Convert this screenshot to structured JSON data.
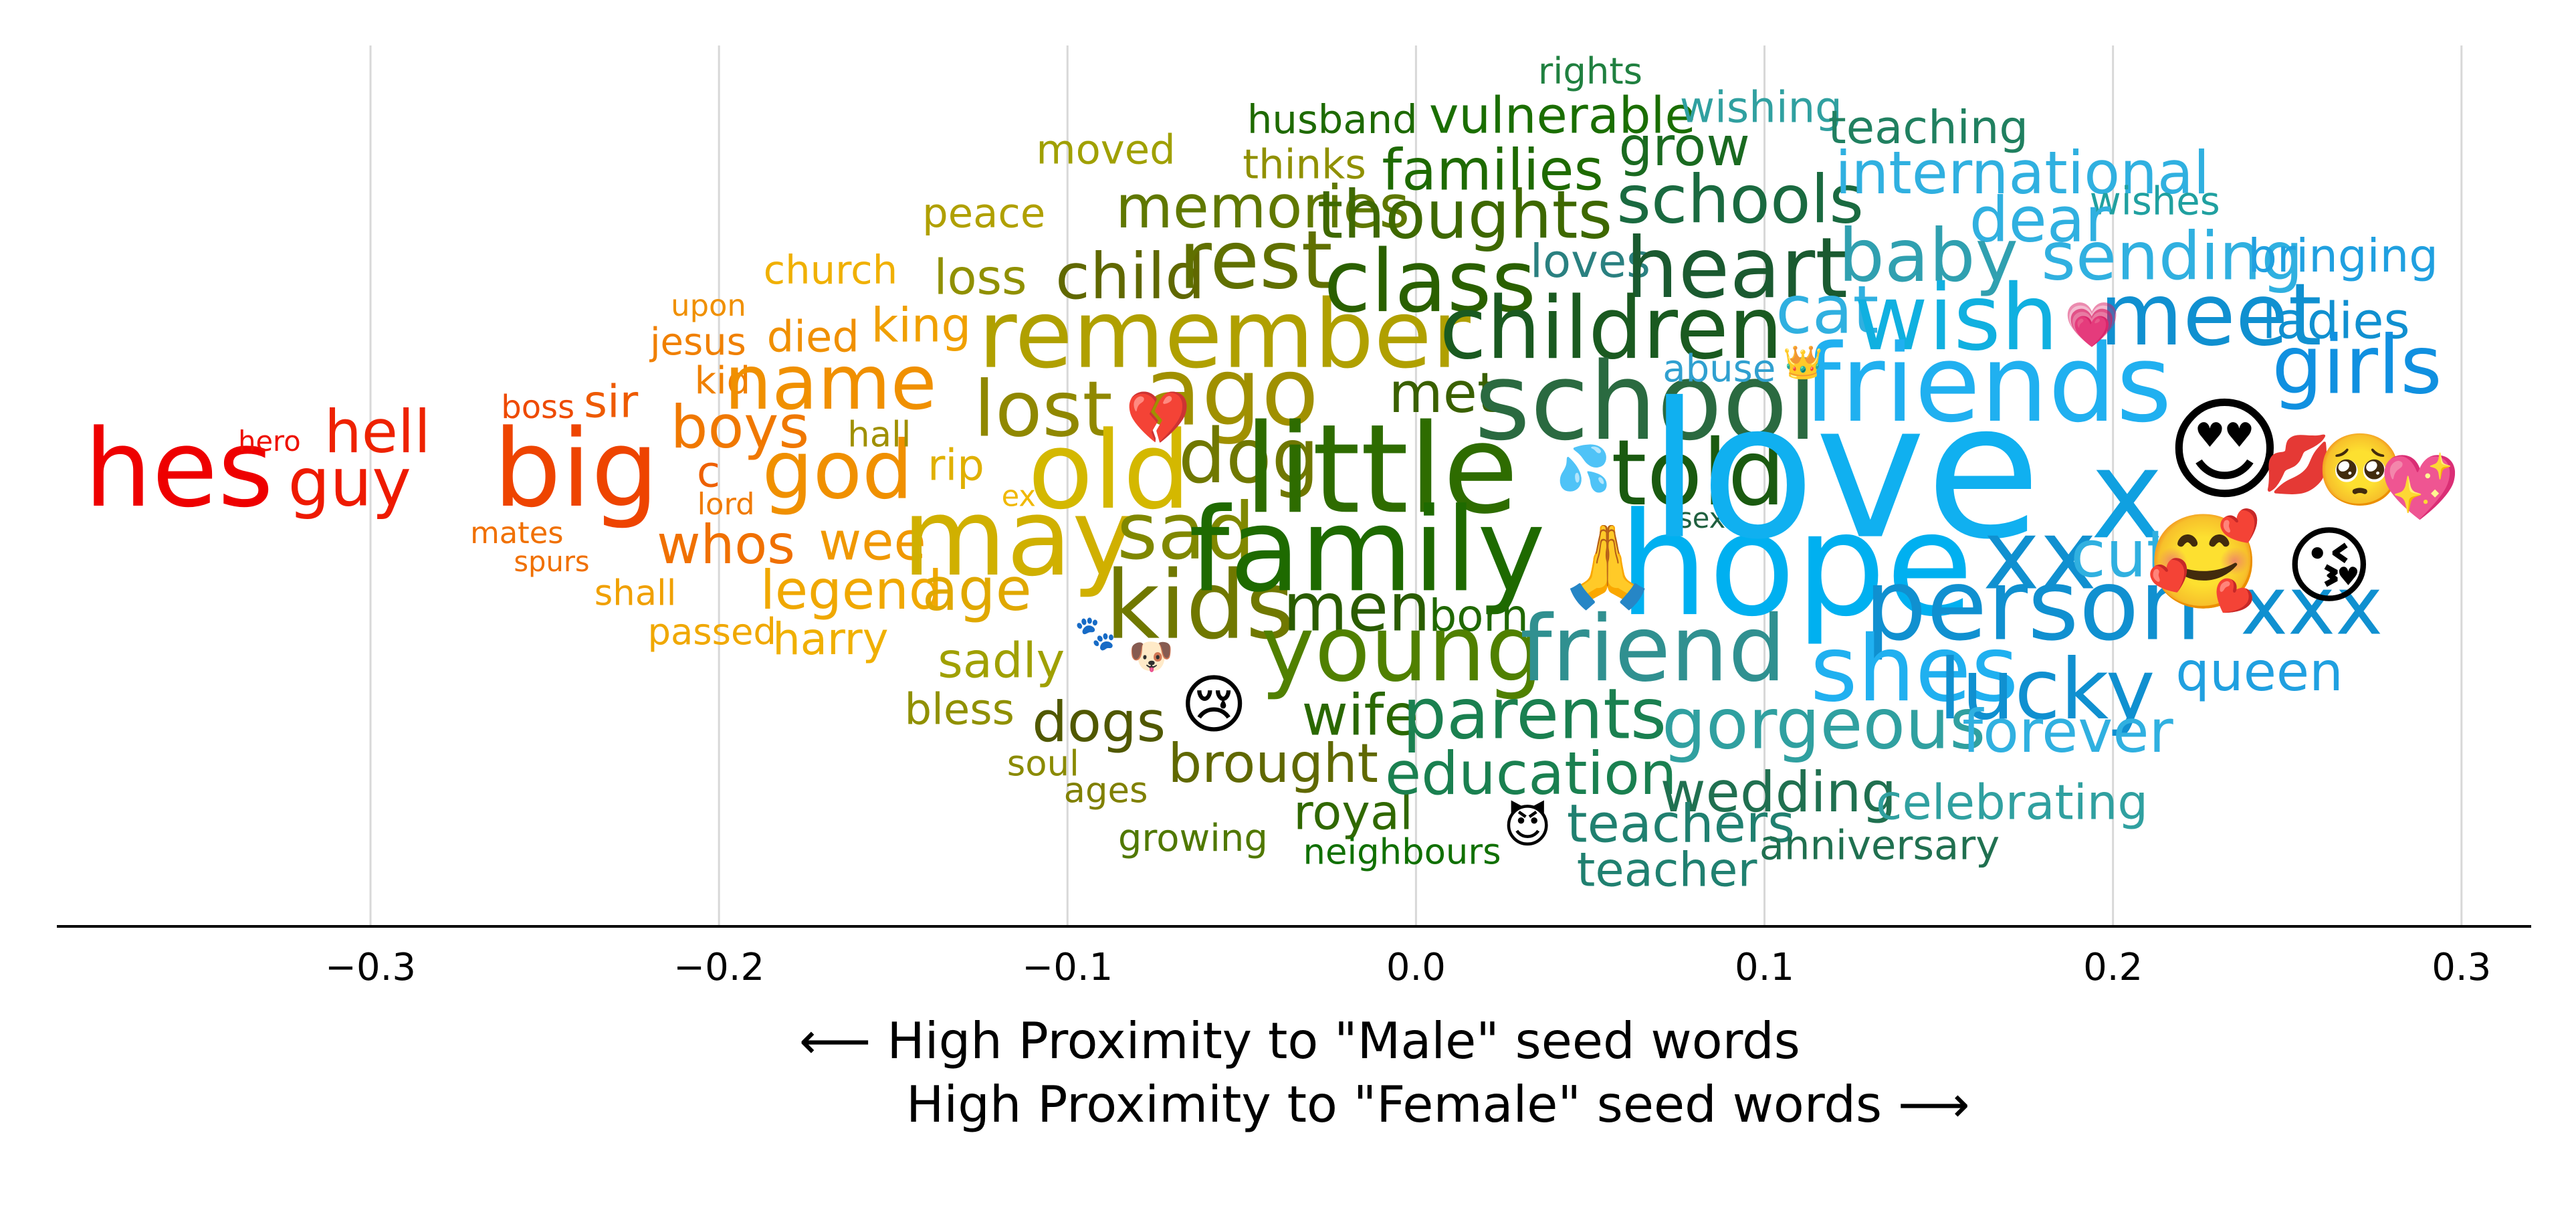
{
  "chart_data": {
    "type": "scatter",
    "subtype": "word-cloud",
    "xlim": [
      -0.39,
      0.32
    ],
    "x_ticks": [
      -0.3,
      -0.2,
      -0.1,
      0.0,
      0.1,
      0.2,
      0.3
    ],
    "x_tick_labels": [
      "−0.3",
      "−0.2",
      "−0.1",
      "0.0",
      "0.1",
      "0.2",
      "0.3"
    ],
    "grid": "vertical",
    "xlabel_line1": "⟵  High Proximity to \"Male\" seed words",
    "xlabel_line2": "High Proximity to \"Female\" seed words  ⟶",
    "words": [
      {
        "text": "hes",
        "x": -0.355,
        "size": 1.0,
        "color": "#ee0000"
      },
      {
        "text": "hero",
        "x": -0.329,
        "size": 0.26,
        "color": "#ee1000"
      },
      {
        "text": "guy",
        "x": -0.306,
        "size": 0.62,
        "color": "#ee1a00"
      },
      {
        "text": "hell",
        "x": -0.298,
        "size": 0.55,
        "color": "#ee2200"
      },
      {
        "text": "big",
        "x": -0.241,
        "size": 1.0,
        "color": "#ee4400"
      },
      {
        "text": "boss",
        "x": -0.252,
        "size": 0.3,
        "color": "#ee4a00"
      },
      {
        "text": "sir",
        "x": -0.231,
        "size": 0.42,
        "color": "#ee5a00"
      },
      {
        "text": "mates",
        "x": -0.258,
        "size": 0.28,
        "color": "#f07000"
      },
      {
        "text": "spurs",
        "x": -0.248,
        "size": 0.26,
        "color": "#f07000"
      },
      {
        "text": "c",
        "x": -0.203,
        "size": 0.4,
        "color": "#ee6000"
      },
      {
        "text": "lord",
        "x": -0.198,
        "size": 0.28,
        "color": "#f07a00"
      },
      {
        "text": "upon",
        "x": -0.203,
        "size": 0.28,
        "color": "#f09000"
      },
      {
        "text": "jesus",
        "x": -0.206,
        "size": 0.35,
        "color": "#f08000"
      },
      {
        "text": "kid",
        "x": -0.199,
        "size": 0.35,
        "color": "#f08000"
      },
      {
        "text": "boys",
        "x": -0.194,
        "size": 0.55,
        "color": "#f07800"
      },
      {
        "text": "whos",
        "x": -0.198,
        "size": 0.5,
        "color": "#f07000"
      },
      {
        "text": "shall",
        "x": -0.224,
        "size": 0.33,
        "color": "#f0a000"
      },
      {
        "text": "passed",
        "x": -0.202,
        "size": 0.34,
        "color": "#f0a800"
      },
      {
        "text": "church",
        "x": -0.168,
        "size": 0.37,
        "color": "#f0b000"
      },
      {
        "text": "died",
        "x": -0.173,
        "size": 0.4,
        "color": "#f09000"
      },
      {
        "text": "king",
        "x": -0.142,
        "size": 0.44,
        "color": "#f0a000"
      },
      {
        "text": "name",
        "x": -0.168,
        "size": 0.7,
        "color": "#f09000"
      },
      {
        "text": "god",
        "x": -0.166,
        "size": 0.75,
        "color": "#f09000"
      },
      {
        "text": "hall",
        "x": -0.154,
        "size": 0.33,
        "color": "#a09000"
      },
      {
        "text": "rip",
        "x": -0.132,
        "size": 0.4,
        "color": "#e0b000"
      },
      {
        "text": "ex",
        "x": -0.114,
        "size": 0.27,
        "color": "#f0b800"
      },
      {
        "text": "wee",
        "x": -0.156,
        "size": 0.49,
        "color": "#f09800"
      },
      {
        "text": "legend",
        "x": -0.162,
        "size": 0.5,
        "color": "#f0a800"
      },
      {
        "text": "age",
        "x": -0.126,
        "size": 0.55,
        "color": "#e0a800"
      },
      {
        "text": "harry",
        "x": -0.168,
        "size": 0.41,
        "color": "#f0b000"
      },
      {
        "text": "peace",
        "x": -0.124,
        "size": 0.38,
        "color": "#b0a000"
      },
      {
        "text": "moved",
        "x": -0.089,
        "size": 0.38,
        "color": "#a0a000"
      },
      {
        "text": "loss",
        "x": -0.125,
        "size": 0.45,
        "color": "#909000"
      },
      {
        "text": "remember",
        "x": -0.055,
        "size": 0.88,
        "color": "#b0a000"
      },
      {
        "text": "lost",
        "x": -0.107,
        "size": 0.72,
        "color": "#908800"
      },
      {
        "text": "old",
        "x": -0.088,
        "size": 1.0,
        "color": "#d4b800"
      },
      {
        "text": "may",
        "x": -0.114,
        "size": 1.0,
        "color": "#d0b000"
      },
      {
        "text": "sadly",
        "x": -0.119,
        "size": 0.45,
        "color": "#a0a000"
      },
      {
        "text": "bless",
        "x": -0.131,
        "size": 0.4,
        "color": "#909000"
      },
      {
        "text": "soul",
        "x": -0.107,
        "size": 0.33,
        "color": "#8a8a00"
      },
      {
        "text": "ages",
        "x": -0.089,
        "size": 0.33,
        "color": "#808000"
      },
      {
        "text": "growing",
        "x": -0.064,
        "size": 0.35,
        "color": "#507800"
      },
      {
        "text": "memories",
        "x": -0.044,
        "size": 0.55,
        "color": "#607800"
      },
      {
        "text": "thinks",
        "x": -0.032,
        "size": 0.38,
        "color": "#909000"
      },
      {
        "text": "husband",
        "x": -0.024,
        "size": 0.37,
        "color": "#1e6a00"
      },
      {
        "text": "child",
        "x": -0.082,
        "size": 0.59,
        "color": "#606800"
      },
      {
        "text": "rest",
        "x": -0.046,
        "size": 0.75,
        "color": "#607000"
      },
      {
        "text": "ago",
        "x": -0.053,
        "size": 0.88,
        "color": "#a09000"
      },
      {
        "text": "dog",
        "x": -0.048,
        "size": 0.7,
        "color": "#707800"
      },
      {
        "text": "sad",
        "x": -0.066,
        "size": 0.73,
        "color": "#808800"
      },
      {
        "text": "kids",
        "x": -0.062,
        "size": 0.88,
        "color": "#707800"
      },
      {
        "text": "dogs",
        "x": -0.091,
        "size": 0.52,
        "color": "#505800"
      },
      {
        "text": "brought",
        "x": -0.041,
        "size": 0.5,
        "color": "#606800"
      },
      {
        "text": "royal",
        "x": -0.018,
        "size": 0.45,
        "color": "#306800"
      },
      {
        "text": "neighbours",
        "x": -0.004,
        "size": 0.33,
        "color": "#107000"
      },
      {
        "text": "families",
        "x": 0.022,
        "size": 0.53,
        "color": "#1e6a00"
      },
      {
        "text": "thoughts",
        "x": 0.014,
        "size": 0.62,
        "color": "#3e6800"
      },
      {
        "text": "class",
        "x": 0.004,
        "size": 0.8,
        "color": "#2a6000"
      },
      {
        "text": "met",
        "x": 0.008,
        "size": 0.52,
        "color": "#3a6000"
      },
      {
        "text": "little",
        "x": -0.01,
        "size": 1.15,
        "color": "#2e6c00"
      },
      {
        "text": "family",
        "x": -0.014,
        "size": 1.08,
        "color": "#1e6a00"
      },
      {
        "text": "men",
        "x": -0.017,
        "size": 0.62,
        "color": "#2a5c00"
      },
      {
        "text": "born",
        "x": 0.018,
        "size": 0.41,
        "color": "#206800"
      },
      {
        "text": "young",
        "x": -0.004,
        "size": 0.85,
        "color": "#508000"
      },
      {
        "text": "wife",
        "x": -0.016,
        "size": 0.53,
        "color": "#2a6800"
      },
      {
        "text": "parents",
        "x": 0.034,
        "size": 0.65,
        "color": "#1a8050"
      },
      {
        "text": "education",
        "x": 0.033,
        "size": 0.55,
        "color": "#1a8050"
      },
      {
        "text": "rights",
        "x": 0.05,
        "size": 0.34,
        "color": "#208040"
      },
      {
        "text": "vulnerable",
        "x": 0.042,
        "size": 0.47,
        "color": "#1a6e00"
      },
      {
        "text": "grow",
        "x": 0.077,
        "size": 0.5,
        "color": "#1a6a20"
      },
      {
        "text": "wishing",
        "x": 0.099,
        "size": 0.4,
        "color": "#30a0a0"
      },
      {
        "text": "teaching",
        "x": 0.147,
        "size": 0.43,
        "color": "#208060"
      },
      {
        "text": "schools",
        "x": 0.093,
        "size": 0.62,
        "color": "#1a6a40"
      },
      {
        "text": "loves",
        "x": 0.05,
        "size": 0.43,
        "color": "#2a8080"
      },
      {
        "text": "heart",
        "x": 0.092,
        "size": 0.78,
        "color": "#1a5a30"
      },
      {
        "text": "children",
        "x": 0.056,
        "size": 0.8,
        "color": "#1a5a20"
      },
      {
        "text": "school",
        "x": 0.066,
        "size": 1.0,
        "color": "#2a6a40"
      },
      {
        "text": "abuse",
        "x": 0.087,
        "size": 0.35,
        "color": "#30a0d0"
      },
      {
        "text": "told",
        "x": 0.081,
        "size": 0.85,
        "color": "#1a5a10"
      },
      {
        "text": "sex",
        "x": 0.082,
        "size": 0.26,
        "color": "#206040"
      },
      {
        "text": "hope",
        "x": 0.109,
        "size": 1.33,
        "color": "#00b0f0"
      },
      {
        "text": "friend",
        "x": 0.068,
        "size": 0.85,
        "color": "#309090"
      },
      {
        "text": "gorgeous",
        "x": 0.117,
        "size": 0.65,
        "color": "#30a0a0"
      },
      {
        "text": "wedding",
        "x": 0.104,
        "size": 0.52,
        "color": "#207050"
      },
      {
        "text": "teachers",
        "x": 0.076,
        "size": 0.49,
        "color": "#208070"
      },
      {
        "text": "teacher",
        "x": 0.072,
        "size": 0.44,
        "color": "#208070"
      },
      {
        "text": "anniversary",
        "x": 0.133,
        "size": 0.38,
        "color": "#207050"
      },
      {
        "text": "celebrating",
        "x": 0.171,
        "size": 0.45,
        "color": "#30a0a0"
      },
      {
        "text": "international",
        "x": 0.174,
        "size": 0.55,
        "color": "#30b0e0"
      },
      {
        "text": "wishes",
        "x": 0.212,
        "size": 0.36,
        "color": "#20a0a0"
      },
      {
        "text": "dear",
        "x": 0.179,
        "size": 0.58,
        "color": "#30b0e0"
      },
      {
        "text": "baby",
        "x": 0.147,
        "size": 0.68,
        "color": "#30a0b0"
      },
      {
        "text": "sending",
        "x": 0.217,
        "size": 0.62,
        "color": "#30b0e0"
      },
      {
        "text": "bringing",
        "x": 0.266,
        "size": 0.43,
        "color": "#20a0e0"
      },
      {
        "text": "cat",
        "x": 0.118,
        "size": 0.62,
        "color": "#30b0e0"
      },
      {
        "text": "wish",
        "x": 0.155,
        "size": 0.85,
        "color": "#10b0e0"
      },
      {
        "text": "meet",
        "x": 0.228,
        "size": 0.8,
        "color": "#1090d0"
      },
      {
        "text": "ladies",
        "x": 0.264,
        "size": 0.47,
        "color": "#1090d0"
      },
      {
        "text": "girls",
        "x": 0.27,
        "size": 0.75,
        "color": "#1090e0"
      },
      {
        "text": "friends",
        "x": 0.164,
        "size": 1.0,
        "color": "#20b0f0"
      },
      {
        "text": "love",
        "x": 0.123,
        "size": 1.75,
        "color": "#10b0f0"
      },
      {
        "text": "x",
        "x": 0.204,
        "size": 1.15,
        "color": "#10a0e0"
      },
      {
        "text": "xx",
        "x": 0.179,
        "size": 0.9,
        "color": "#1090d0"
      },
      {
        "text": "cute",
        "x": 0.208,
        "size": 0.6,
        "color": "#30b0e0"
      },
      {
        "text": "person",
        "x": 0.177,
        "size": 0.92,
        "color": "#1090d0"
      },
      {
        "text": "xxx",
        "x": 0.257,
        "size": 0.75,
        "color": "#1090d0"
      },
      {
        "text": "shes",
        "x": 0.143,
        "size": 0.85,
        "color": "#20b0f0"
      },
      {
        "text": "lucky",
        "x": 0.181,
        "size": 0.78,
        "color": "#1090d0"
      },
      {
        "text": "queen",
        "x": 0.242,
        "size": 0.5,
        "color": "#20a0e0"
      },
      {
        "text": "forever",
        "x": 0.187,
        "size": 0.55,
        "color": "#30b0e0"
      }
    ],
    "emojis": [
      {
        "name": "broken-heart-emoji",
        "glyph": "💔",
        "x": -0.074,
        "size": 0.65
      },
      {
        "name": "paw-prints-emoji",
        "glyph": "🐾",
        "x": -0.092,
        "size": 0.42
      },
      {
        "name": "dog-face-emoji",
        "glyph": "🐶",
        "x": -0.076,
        "size": 0.45
      },
      {
        "name": "crying-face-emoji",
        "glyph": "😢",
        "x": -0.058,
        "size": 0.8
      },
      {
        "name": "sweat-droplets-emoji",
        "glyph": "💦",
        "x": 0.048,
        "size": 0.55
      },
      {
        "name": "folded-hands-emoji",
        "glyph": "🙏",
        "x": 0.055,
        "size": 1.0
      },
      {
        "name": "smiling-imp-emoji",
        "glyph": "😈",
        "x": 0.032,
        "size": 0.58
      },
      {
        "name": "crown-emoji",
        "glyph": "👑",
        "x": 0.111,
        "size": 0.4
      },
      {
        "name": "growing-heart-emoji",
        "glyph": "💗",
        "x": 0.194,
        "size": 0.55
      },
      {
        "name": "heart-eyes-emoji",
        "glyph": "😍",
        "x": 0.232,
        "size": 1.4
      },
      {
        "name": "smiling-hearts-emoji",
        "glyph": "🥰",
        "x": 0.226,
        "size": 1.15
      },
      {
        "name": "kiss-mark-emoji",
        "glyph": "💋",
        "x": 0.253,
        "size": 0.7
      },
      {
        "name": "pleading-face-emoji",
        "glyph": "🥺",
        "x": 0.271,
        "size": 0.88
      },
      {
        "name": "sparkling-heart-emoji",
        "glyph": "💖",
        "x": 0.288,
        "size": 0.8
      },
      {
        "name": "face-blowing-kiss-emoji",
        "glyph": "😘",
        "x": 0.262,
        "size": 1.05
      }
    ]
  }
}
